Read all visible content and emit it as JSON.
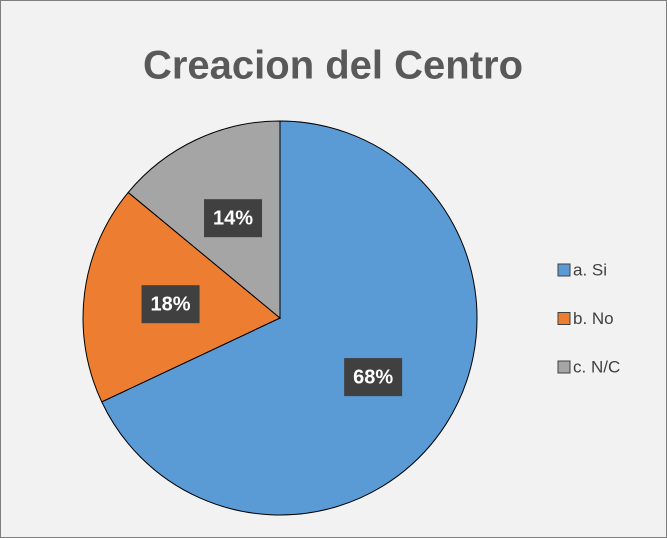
{
  "chart_data": {
    "type": "pie",
    "title": "Creacion del Centro",
    "categories": [
      "a. Si",
      "b. No",
      "c. N/C"
    ],
    "values": [
      68,
      18,
      14
    ],
    "value_labels": [
      "68%",
      "18%",
      "14%"
    ],
    "colors": [
      "#5b9bd5",
      "#ed7d31",
      "#a5a5a5"
    ],
    "legend": "right"
  }
}
